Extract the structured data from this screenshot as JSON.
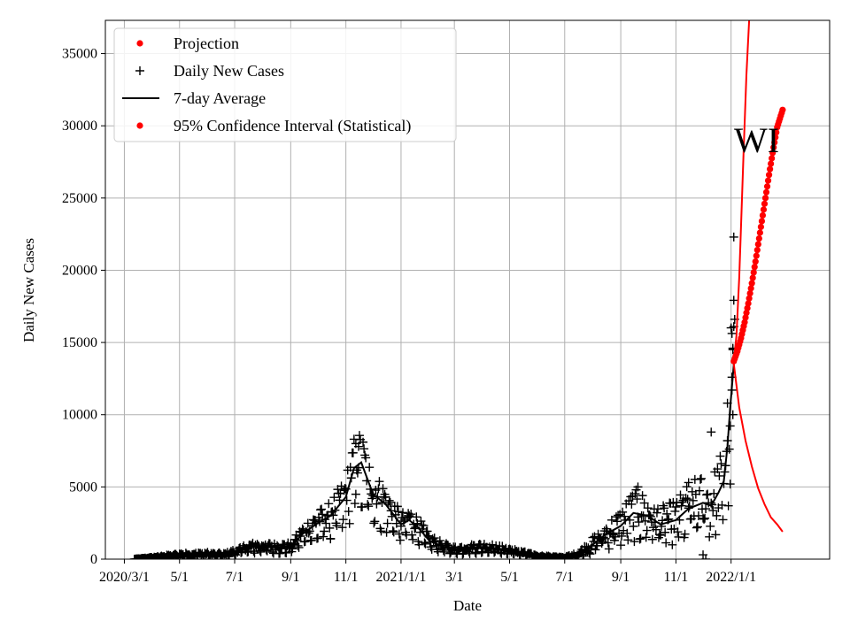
{
  "chart_data": {
    "type": "scatter",
    "title": "",
    "annotation": "WI",
    "xlabel": "Date",
    "ylabel": "Daily New Cases",
    "xlim": [
      "2020-02-09",
      "2022-04-20"
    ],
    "ylim": [
      0,
      37300
    ],
    "grid": true,
    "legend_position": "top-left",
    "x_ticks": [
      {
        "date": "2020-03-01",
        "label": "2020/3/1"
      },
      {
        "date": "2020-05-01",
        "label": "5/1"
      },
      {
        "date": "2020-07-01",
        "label": "7/1"
      },
      {
        "date": "2020-09-01",
        "label": "9/1"
      },
      {
        "date": "2020-11-01",
        "label": "11/1"
      },
      {
        "date": "2021-01-01",
        "label": "2021/1/1"
      },
      {
        "date": "2021-03-01",
        "label": "3/1"
      },
      {
        "date": "2021-05-01",
        "label": "5/1"
      },
      {
        "date": "2021-07-01",
        "label": "7/1"
      },
      {
        "date": "2021-09-01",
        "label": "9/1"
      },
      {
        "date": "2021-11-01",
        "label": "11/1"
      },
      {
        "date": "2022-01-01",
        "label": "2022/1/1"
      }
    ],
    "y_ticks": [
      0,
      5000,
      10000,
      15000,
      20000,
      25000,
      30000,
      35000
    ],
    "legend": [
      {
        "label": "Projection",
        "marker": "dot",
        "color": "#ff0000"
      },
      {
        "label": "Daily New Cases",
        "marker": "plus",
        "color": "#000000"
      },
      {
        "label": "7-day Average",
        "marker": "line",
        "color": "#000000"
      },
      {
        "label": "95% Confidence Interval (Statistical)",
        "marker": "dot",
        "color": "#ff0000"
      }
    ],
    "seven_day_average": {
      "name": "7-day Average",
      "color": "#000000",
      "points": [
        [
          "2020-03-12",
          0
        ],
        [
          "2020-04-01",
          100
        ],
        [
          "2020-05-01",
          300
        ],
        [
          "2020-06-01",
          350
        ],
        [
          "2020-06-20",
          300
        ],
        [
          "2020-07-01",
          500
        ],
        [
          "2020-07-15",
          800
        ],
        [
          "2020-08-01",
          900
        ],
        [
          "2020-08-15",
          800
        ],
        [
          "2020-09-01",
          850
        ],
        [
          "2020-09-15",
          1800
        ],
        [
          "2020-10-01",
          2500
        ],
        [
          "2020-10-15",
          3000
        ],
        [
          "2020-11-01",
          4300
        ],
        [
          "2020-11-10",
          6300
        ],
        [
          "2020-11-18",
          6700
        ],
        [
          "2020-12-01",
          4500
        ],
        [
          "2020-12-15",
          3800
        ],
        [
          "2021-01-01",
          2400
        ],
        [
          "2021-01-10",
          2700
        ],
        [
          "2021-01-20",
          2200
        ],
        [
          "2021-02-01",
          1300
        ],
        [
          "2021-02-15",
          900
        ],
        [
          "2021-03-01",
          650
        ],
        [
          "2021-04-01",
          850
        ],
        [
          "2021-04-15",
          750
        ],
        [
          "2021-05-01",
          600
        ],
        [
          "2021-06-01",
          200
        ],
        [
          "2021-07-01",
          100
        ],
        [
          "2021-07-15",
          300
        ],
        [
          "2021-08-01",
          1000
        ],
        [
          "2021-08-15",
          1700
        ],
        [
          "2021-09-01",
          2300
        ],
        [
          "2021-09-15",
          3200
        ],
        [
          "2021-10-01",
          3000
        ],
        [
          "2021-10-15",
          2400
        ],
        [
          "2021-11-01",
          2700
        ],
        [
          "2021-11-15",
          3500
        ],
        [
          "2021-12-01",
          3900
        ],
        [
          "2021-12-10",
          3700
        ],
        [
          "2021-12-18",
          4600
        ],
        [
          "2021-12-24",
          5400
        ],
        [
          "2021-12-28",
          7800
        ],
        [
          "2021-12-31",
          10500
        ],
        [
          "2022-01-04",
          13500
        ]
      ]
    },
    "daily_cases_waves": {
      "name": "Daily New Cases",
      "color": "#000000",
      "spread": [
        {
          "from": "2020-03-12",
          "to": "2020-09-01",
          "jitter": 0.25
        },
        {
          "from": "2020-09-01",
          "to": "2021-07-01",
          "jitter": 0.22
        },
        {
          "from": "2021-07-01",
          "to": "2022-01-05",
          "jitter": 0.38
        }
      ],
      "outliers": [
        [
          "2022-01-04",
          22300
        ],
        [
          "2022-01-05",
          16600
        ],
        [
          "2022-01-04",
          16100
        ],
        [
          "2022-01-03",
          14600
        ],
        [
          "2022-01-02",
          12600
        ],
        [
          "2022-01-02",
          11700
        ],
        [
          "2022-01-03",
          10000
        ],
        [
          "2021-12-10",
          8800
        ],
        [
          "2021-12-28",
          8200
        ],
        [
          "2021-12-31",
          5200
        ],
        [
          "2021-12-01",
          300
        ],
        [
          "2021-12-04",
          0
        ],
        [
          "2021-11-15",
          5300
        ],
        [
          "2021-09-20",
          5000
        ],
        [
          "2020-10-15",
          1400
        ],
        [
          "2020-11-12",
          8000
        ],
        [
          "2020-11-15",
          7800
        ]
      ]
    },
    "projection": {
      "name": "Projection",
      "color": "#ff0000",
      "points": [
        [
          "2022-01-04",
          13700
        ],
        [
          "2022-01-08",
          14400
        ],
        [
          "2022-01-12",
          15300
        ],
        [
          "2022-01-16",
          16400
        ],
        [
          "2022-01-20",
          17700
        ],
        [
          "2022-01-24",
          19100
        ],
        [
          "2022-01-28",
          20600
        ],
        [
          "2022-02-01",
          22200
        ],
        [
          "2022-02-05",
          23800
        ],
        [
          "2022-02-09",
          25400
        ],
        [
          "2022-02-13",
          27000
        ],
        [
          "2022-02-17",
          28500
        ],
        [
          "2022-02-21",
          29900
        ],
        [
          "2022-02-24",
          30500
        ],
        [
          "2022-02-27",
          31100
        ]
      ]
    },
    "ci_upper": {
      "name": "95% Confidence Interval (Statistical)",
      "color": "#ff0000",
      "points": [
        [
          "2022-01-04",
          13700
        ],
        [
          "2022-01-07",
          15500
        ],
        [
          "2022-01-10",
          19500
        ],
        [
          "2022-01-12",
          23000
        ],
        [
          "2022-01-15",
          28500
        ],
        [
          "2022-01-18",
          33500
        ],
        [
          "2022-01-21",
          37300
        ]
      ]
    },
    "ci_lower": {
      "name": "95% Confidence Interval (Statistical)",
      "color": "#ff0000",
      "points": [
        [
          "2022-01-04",
          13500
        ],
        [
          "2022-01-10",
          10500
        ],
        [
          "2022-01-17",
          8200
        ],
        [
          "2022-01-24",
          6400
        ],
        [
          "2022-01-31",
          4900
        ],
        [
          "2022-02-07",
          3800
        ],
        [
          "2022-02-14",
          2900
        ],
        [
          "2022-02-21",
          2400
        ],
        [
          "2022-02-27",
          1900
        ]
      ]
    }
  }
}
